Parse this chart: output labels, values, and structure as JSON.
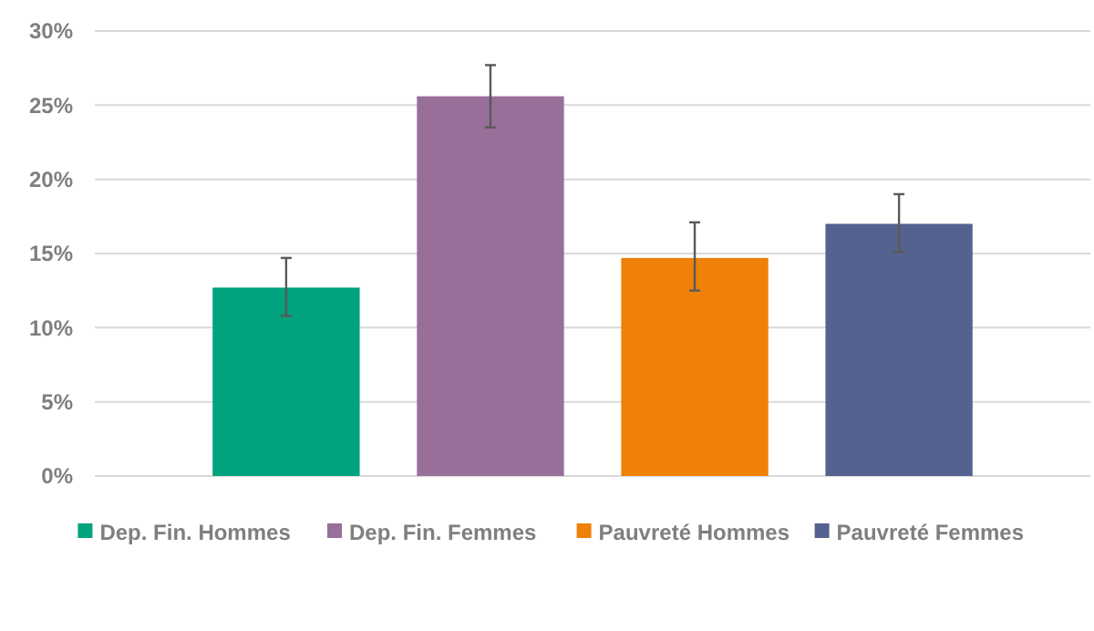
{
  "chart_data": {
    "type": "bar",
    "categories": [
      null
    ],
    "series": [
      {
        "name": "Dep. Fin. Hommes",
        "color": "#00a37d",
        "values": [
          12.7
        ],
        "errors": [
          [
            10.8,
            14.7
          ]
        ]
      },
      {
        "name": "Dep. Fin. Femmes",
        "color": "#976f99",
        "values": [
          25.6
        ],
        "errors": [
          [
            23.5,
            27.7
          ]
        ]
      },
      {
        "name": "Pauvreté Hommes",
        "color": "#ef8008",
        "values": [
          14.7
        ],
        "errors": [
          [
            12.5,
            17.1
          ]
        ]
      },
      {
        "name": "Pauvreté Femmes",
        "color": "#556290",
        "values": [
          17.0
        ],
        "errors": [
          [
            15.1,
            19.0
          ]
        ]
      }
    ],
    "ylim": [
      0,
      30
    ],
    "yticks": [
      {
        "value": 0,
        "label": "0%"
      },
      {
        "value": 5,
        "label": "5%"
      },
      {
        "value": 10,
        "label": "10%"
      },
      {
        "value": 15,
        "label": "15%"
      },
      {
        "value": 20,
        "label": "20%"
      },
      {
        "value": 25,
        "label": "25%"
      },
      {
        "value": 30,
        "label": "30%"
      }
    ],
    "grid": "y",
    "legend": "bottom"
  }
}
